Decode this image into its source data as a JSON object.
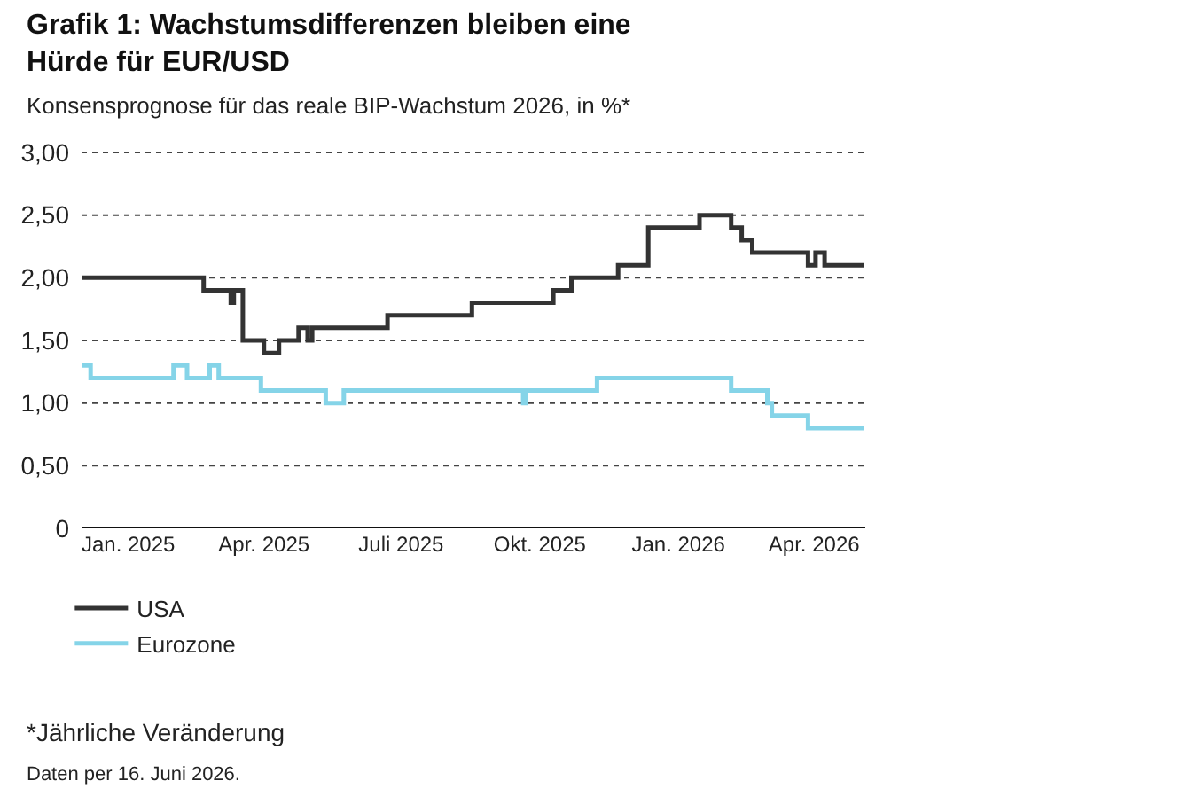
{
  "chart_data": {
    "type": "step",
    "title": "Grafik 1: Wachstumsdifferenzen bleiben eine Hürde für EUR/USD",
    "subtitle": "Konsensprognose für das reale BIP-Wachstum 2026, in %*",
    "series": [
      {
        "name": "USA",
        "color": "#333333",
        "x": [
          "2024-12-01",
          "2025-02-20",
          "2025-03-10",
          "2025-03-12",
          "2025-03-18",
          "2025-04-01",
          "2025-04-11",
          "2025-04-24",
          "2025-04-30",
          "2025-05-03",
          "2025-06-22",
          "2025-08-17",
          "2025-10-10",
          "2025-10-22",
          "2025-11-22",
          "2025-12-12",
          "2026-01-15",
          "2026-02-05",
          "2026-02-12",
          "2026-02-19",
          "2026-03-28",
          "2026-04-02",
          "2026-04-08",
          "2026-05-04"
        ],
        "values": [
          2.0,
          1.9,
          1.8,
          1.9,
          1.5,
          1.4,
          1.5,
          1.6,
          1.5,
          1.6,
          1.7,
          1.8,
          1.9,
          2.0,
          2.1,
          2.4,
          2.5,
          2.4,
          2.3,
          2.2,
          2.1,
          2.2,
          2.1,
          2.1
        ]
      },
      {
        "name": "Eurozone",
        "color": "#85d4e8",
        "x": [
          "2024-12-01",
          "2024-12-07",
          "2025-01-31",
          "2025-02-09",
          "2025-02-24",
          "2025-03-02",
          "2025-03-30",
          "2025-05-12",
          "2025-05-24",
          "2025-09-20",
          "2025-09-22",
          "2025-11-08",
          "2026-02-05",
          "2026-03-01",
          "2026-03-04",
          "2026-03-28",
          "2026-05-04"
        ],
        "values": [
          1.3,
          1.2,
          1.3,
          1.2,
          1.3,
          1.2,
          1.1,
          1.0,
          1.1,
          1.0,
          1.1,
          1.2,
          1.1,
          1.0,
          0.9,
          0.8,
          0.8
        ]
      }
    ],
    "xlim": [
      "2024-12-01",
      "2026-05-05"
    ],
    "xticks": [
      {
        "value": "2025-01-01",
        "label": "Jan. 2025"
      },
      {
        "value": "2025-04-01",
        "label": "Apr. 2025"
      },
      {
        "value": "2025-07-01",
        "label": "Juli 2025"
      },
      {
        "value": "2025-10-01",
        "label": "Okt. 2025"
      },
      {
        "value": "2026-01-01",
        "label": "Jan. 2026"
      },
      {
        "value": "2026-04-01",
        "label": "Apr. 2026"
      }
    ],
    "ylim": [
      0,
      3.0
    ],
    "yticks": [
      0,
      {
        "value": 0.5,
        "label": "0,50"
      },
      {
        "value": 1.0,
        "label": "1,00"
      },
      {
        "value": 1.5,
        "label": "1,50"
      },
      {
        "value": 2.0,
        "label": "2,00"
      },
      {
        "value": 2.5,
        "label": "2,50"
      },
      {
        "value": 3.0,
        "label": "3,00"
      }
    ],
    "grid": "y",
    "legend": "bottom",
    "line_style": "solid",
    "annotations": [
      "*Jährliche Veränderung",
      "Daten per 16. Juni 2026."
    ]
  }
}
